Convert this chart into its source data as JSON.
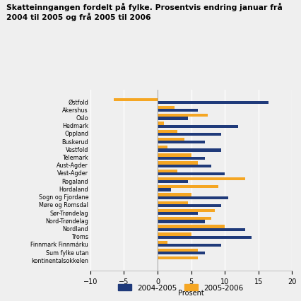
{
  "title": "Skatteinngangen fordelt på fylke. Prosentvis endring januar frå\n2004 til 2005 og frå 2005 til 2006",
  "categories": [
    "Østfold",
    "Akershus",
    "Oslo",
    "Hedmark",
    "Oppland",
    "Buskerud",
    "Vestfold",
    "Telemark",
    "Aust-Agder",
    "Vest-Agder",
    "Rogaland",
    "Hordaland",
    "Sogn og Fjordane",
    "Møre og Romsdal",
    "Sør-Trøndelag",
    "Nord-Trøndelag",
    "Nordland",
    "Troms",
    "Finnmark Finnmárku",
    "Sum fylke utan",
    "kontinentalsokkelen"
  ],
  "series_2004_2005": [
    16.5,
    6.0,
    4.5,
    12.0,
    9.5,
    7.0,
    9.5,
    7.0,
    8.0,
    10.0,
    4.5,
    2.0,
    10.5,
    9.5,
    6.0,
    7.0,
    13.0,
    14.0,
    9.5,
    7.0,
    0.0
  ],
  "series_2005_2006": [
    -6.5,
    2.5,
    7.5,
    1.0,
    3.0,
    4.0,
    1.5,
    5.0,
    6.0,
    3.0,
    13.0,
    9.0,
    5.0,
    4.5,
    8.5,
    8.0,
    10.0,
    5.0,
    1.5,
    6.0,
    6.0
  ],
  "color_2004_2005": "#1f3a7a",
  "color_2005_2006": "#f5a623",
  "xlabel": "Prosent",
  "xlim": [
    -10,
    20
  ],
  "xticks": [
    -10,
    -5,
    0,
    5,
    10,
    15,
    20
  ],
  "legend_labels": [
    "2004-2005",
    "2005-2006"
  ],
  "bar_height": 0.38,
  "background_color": "#efefef",
  "grid_color": "#ffffff"
}
